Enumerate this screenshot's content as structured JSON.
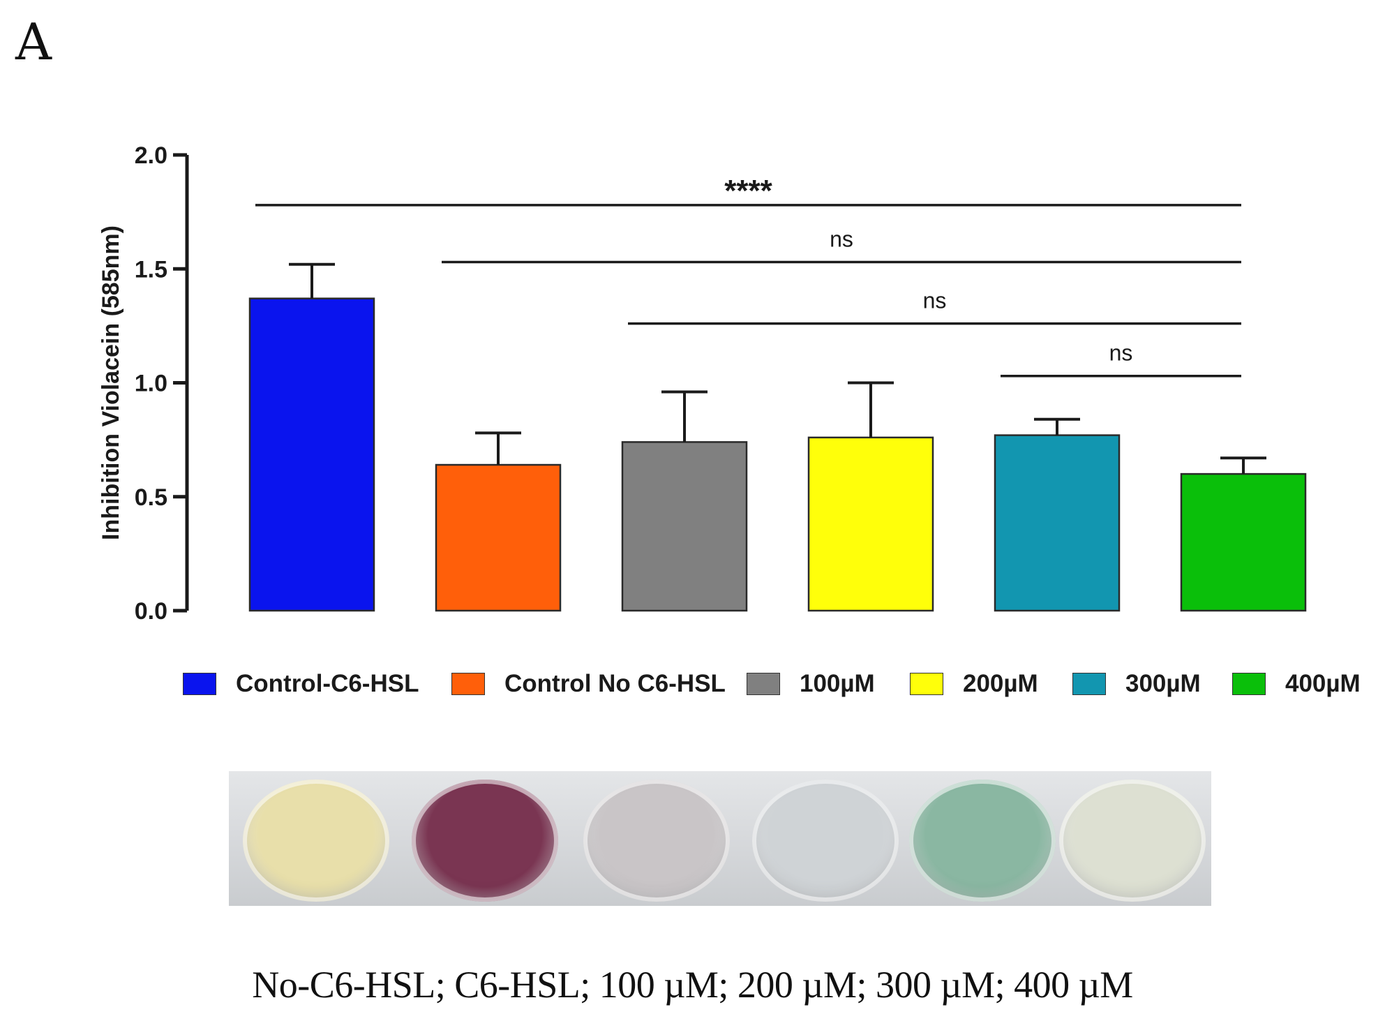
{
  "panel_label": "A",
  "chart_data": {
    "type": "bar",
    "title": "",
    "xlabel": "",
    "ylabel": "Inhibition Violacein (585nm)",
    "ylim": [
      0,
      2.0
    ],
    "yticks": [
      "0.0",
      "0.5",
      "1.0",
      "1.5",
      "2.0"
    ],
    "categories": [
      "Control-C6-HSL",
      "Control No C6-HSL",
      "100µM",
      "200µM",
      "300µM",
      "400µM"
    ],
    "values": [
      1.37,
      0.64,
      0.74,
      0.76,
      0.77,
      0.6
    ],
    "error_upper": [
      1.52,
      0.78,
      0.96,
      1.0,
      0.84,
      0.67
    ],
    "colors": [
      "#0a14ee",
      "#ff5f0a",
      "#808080",
      "#ffff0a",
      "#1296b0",
      "#0abf0a"
    ],
    "significance": [
      {
        "label": "****",
        "from": 0,
        "to": 5,
        "y": 1.78
      },
      {
        "label": "ns",
        "from": 1,
        "to": 5,
        "y": 1.53
      },
      {
        "label": "ns",
        "from": 2,
        "to": 5,
        "y": 1.26
      },
      {
        "label": "ns",
        "from": 4,
        "to": 5,
        "y": 1.03
      }
    ]
  },
  "legend": [
    {
      "label": "Control-C6-HSL",
      "color": "#0a14ee"
    },
    {
      "label": "Control No C6-HSL",
      "color": "#ff5f0a"
    },
    {
      "label": "100µM",
      "color": "#808080"
    },
    {
      "label": "200µM",
      "color": "#ffff0a"
    },
    {
      "label": "300µM",
      "color": "#1296b0"
    },
    {
      "label": "400µM",
      "color": "#0abf0a"
    }
  ],
  "photo": {
    "well_colors": [
      "#e8dfaa",
      "#7a3552",
      "#c9c5c7",
      "#cfd3d6",
      "#8ab7a2",
      "#dde0d2"
    ]
  },
  "caption": "No-C6-HSL; C6-HSL; 100 µM; 200 µM; 300 µM; 400 µM"
}
